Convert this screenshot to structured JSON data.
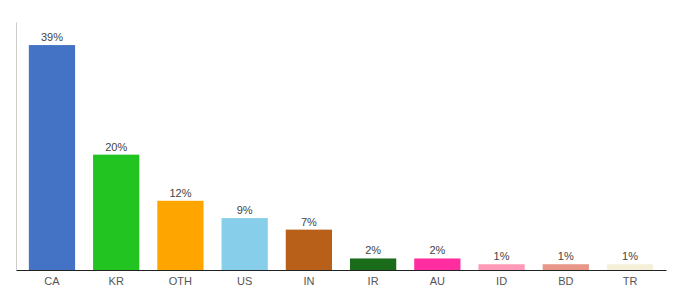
{
  "chart_data": {
    "type": "bar",
    "categories": [
      "CA",
      "KR",
      "OTH",
      "US",
      "IN",
      "IR",
      "AU",
      "ID",
      "BD",
      "TR"
    ],
    "values": [
      39,
      20,
      12,
      9,
      7,
      2,
      2,
      1,
      1,
      1
    ],
    "value_labels": [
      "39%",
      "20%",
      "12%",
      "9%",
      "7%",
      "2%",
      "2%",
      "1%",
      "1%",
      "1%"
    ],
    "colors": [
      "#4472c4",
      "#22c422",
      "#ffa500",
      "#87ceeb",
      "#b8601a",
      "#1a6b1a",
      "#ff2da0",
      "#ff9ab8",
      "#e89688",
      "#f5f0d8"
    ],
    "ylim": [
      0,
      43
    ],
    "data_labels": true,
    "tick_labels": "x"
  }
}
